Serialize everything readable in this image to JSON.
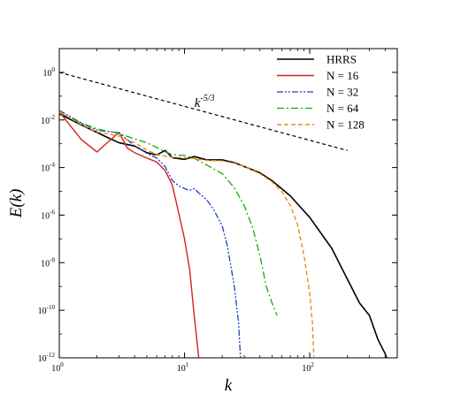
{
  "chart_data": {
    "type": "line",
    "title": "",
    "xlabel": "k",
    "ylabel": "E(k)",
    "xscale": "log",
    "yscale": "log",
    "xlim": [
      1,
      500
    ],
    "ylim": [
      1e-12,
      10
    ],
    "x_ticks": [
      {
        "value": 1,
        "base": "10",
        "exp": "0"
      },
      {
        "value": 10,
        "base": "10",
        "exp": "1"
      },
      {
        "value": 100,
        "base": "10",
        "exp": "2"
      }
    ],
    "y_ticks": [
      {
        "value": 1e-12,
        "base": "10",
        "exp": "-12"
      },
      {
        "value": 1e-10,
        "base": "10",
        "exp": "-10"
      },
      {
        "value": 1e-08,
        "base": "10",
        "exp": "-8"
      },
      {
        "value": 1e-06,
        "base": "10",
        "exp": "-6"
      },
      {
        "value": 0.0001,
        "base": "10",
        "exp": "-4"
      },
      {
        "value": 0.01,
        "base": "10",
        "exp": "-2"
      },
      {
        "value": 1,
        "base": "10",
        "exp": "0"
      }
    ],
    "grid": false,
    "legend_position": "top-right",
    "annotation": {
      "base": "k",
      "exp": "-5/3",
      "x": 12,
      "y": 0.035
    },
    "reference_line": {
      "name": "k^-5/3",
      "color": "#000000",
      "dash": "4,3",
      "points": [
        [
          1,
          1.0
        ],
        [
          200,
          0.00052
        ]
      ]
    },
    "series": [
      {
        "name": "HRRS",
        "color": "#000000",
        "dash": "",
        "width": 1.6,
        "points": [
          [
            1,
            0.018
          ],
          [
            1.5,
            0.0062
          ],
          [
            2,
            0.003
          ],
          [
            2.5,
            0.0017
          ],
          [
            3,
            0.0011
          ],
          [
            4,
            0.0008
          ],
          [
            5,
            0.00042
          ],
          [
            6,
            0.00034
          ],
          [
            7,
            0.00052
          ],
          [
            8,
            0.00026
          ],
          [
            10,
            0.00022
          ],
          [
            12,
            0.00029
          ],
          [
            15,
            0.00021
          ],
          [
            20,
            0.00021
          ],
          [
            25,
            0.00016
          ],
          [
            30,
            0.00011
          ],
          [
            40,
            6e-05
          ],
          [
            50,
            2.8e-05
          ],
          [
            70,
            6.4e-06
          ],
          [
            100,
            8e-07
          ],
          [
            150,
            4e-08
          ],
          [
            200,
            2e-09
          ],
          [
            250,
            2e-10
          ],
          [
            300,
            6e-11
          ],
          [
            350,
            6e-12
          ],
          [
            400,
            1.5e-12
          ],
          [
            430,
            5e-13
          ]
        ]
      },
      {
        "name": "N = 16",
        "color": "#d42020",
        "dash": "",
        "width": 1.4,
        "points": [
          [
            1,
            0.022
          ],
          [
            1.5,
            0.0015
          ],
          [
            2,
            0.00045
          ],
          [
            2.5,
            0.0013
          ],
          [
            3,
            0.003
          ],
          [
            3.5,
            0.00065
          ],
          [
            4,
            0.00042
          ],
          [
            5,
            0.00025
          ],
          [
            6,
            0.00017
          ],
          [
            7,
            7.5e-05
          ],
          [
            8,
            1.8e-05
          ],
          [
            9,
            1.2e-06
          ],
          [
            10,
            1e-07
          ],
          [
            11,
            5e-09
          ],
          [
            12,
            5e-11
          ],
          [
            13,
            1e-12
          ]
        ]
      },
      {
        "name": "N = 32",
        "color": "#1f3fc8",
        "dash": "7,2,2,2,2,2",
        "width": 1.3,
        "points": [
          [
            1,
            0.025
          ],
          [
            1.5,
            0.0075
          ],
          [
            2,
            0.0037
          ],
          [
            3,
            0.0029
          ],
          [
            4,
            0.0008
          ],
          [
            5,
            0.0004
          ],
          [
            6,
            0.00025
          ],
          [
            7,
            0.00011
          ],
          [
            8,
            2.8e-05
          ],
          [
            9,
            1.7e-05
          ],
          [
            10,
            1.3e-05
          ],
          [
            11,
            1.1e-05
          ],
          [
            12,
            1.3e-05
          ],
          [
            13,
            8.5e-06
          ],
          [
            15,
            4.5e-06
          ],
          [
            17,
            1.8e-06
          ],
          [
            20,
            3.5e-07
          ],
          [
            22,
            5e-08
          ],
          [
            25,
            1e-09
          ],
          [
            27,
            3e-11
          ],
          [
            28,
            1e-12
          ]
        ]
      },
      {
        "name": "N = 64",
        "color": "#0fae0f",
        "dash": "8,3,2,3",
        "width": 1.3,
        "points": [
          [
            1,
            0.02
          ],
          [
            1.5,
            0.0075
          ],
          [
            2,
            0.0042
          ],
          [
            3,
            0.0027
          ],
          [
            4,
            0.0016
          ],
          [
            5,
            0.0011
          ],
          [
            6,
            0.0007
          ],
          [
            7,
            0.00046
          ],
          [
            8,
            0.00035
          ],
          [
            10,
            0.00032
          ],
          [
            12,
            0.00024
          ],
          [
            15,
            0.00013
          ],
          [
            20,
            5.5e-05
          ],
          [
            25,
            1.4e-05
          ],
          [
            30,
            2.5e-06
          ],
          [
            35,
            3e-07
          ],
          [
            40,
            2e-08
          ],
          [
            45,
            1e-09
          ],
          [
            50,
            2e-10
          ],
          [
            55,
            6e-11
          ]
        ]
      },
      {
        "name": "N = 128",
        "color": "#f08a1a",
        "dash": "5,3",
        "width": 1.4,
        "points": [
          [
            1,
            0.022
          ],
          [
            1.5,
            0.0065
          ],
          [
            2,
            0.0031
          ],
          [
            3,
            0.0021
          ],
          [
            4,
            0.0011
          ],
          [
            5,
            0.00055
          ],
          [
            6,
            0.00035
          ],
          [
            7,
            0.0003
          ],
          [
            8,
            0.00027
          ],
          [
            10,
            0.00026
          ],
          [
            12,
            0.00024
          ],
          [
            15,
            0.0002
          ],
          [
            20,
            0.00019
          ],
          [
            25,
            0.00015
          ],
          [
            30,
            0.00011
          ],
          [
            40,
            5.5e-05
          ],
          [
            50,
            2.5e-05
          ],
          [
            60,
            9.5e-06
          ],
          [
            70,
            2.5e-06
          ],
          [
            80,
            4e-07
          ],
          [
            90,
            2e-08
          ],
          [
            100,
            5e-10
          ],
          [
            105,
            3e-11
          ],
          [
            108,
            1e-12
          ]
        ]
      }
    ]
  }
}
